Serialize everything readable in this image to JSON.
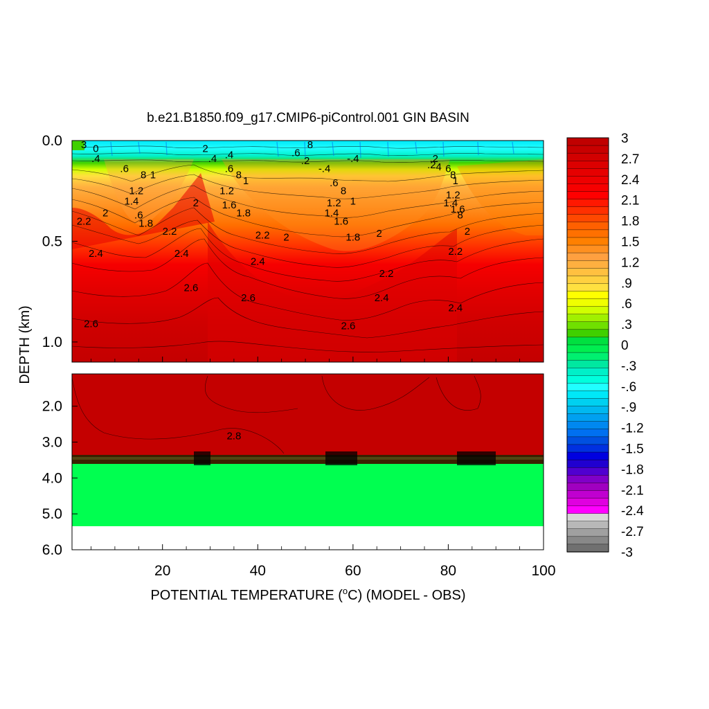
{
  "chart_data": {
    "type": "heatmap",
    "title": "b.e21.B1850.f09_g17.CMIP6-piControl.001 GIN BASIN",
    "xlabel_main": "POTENTIAL TEMPERATURE (",
    "xlabel_unit_sup": "o",
    "xlabel_unit": "C",
    "xlabel_tail": ") (MODEL - OBS)",
    "ylabel": "DEPTH (km)",
    "x_range": [
      1,
      100
    ],
    "x_ticks": [
      20,
      40,
      60,
      80,
      100
    ],
    "x_tick_labels": [
      "20",
      "40",
      "60",
      "80",
      "100"
    ],
    "upper_panel": {
      "y_range": [
        0,
        1.1
      ],
      "y_tick_labels": [
        "0.0",
        "0.5",
        "1.0"
      ],
      "y_ticks": [
        0,
        0.5,
        1.0
      ]
    },
    "lower_panel": {
      "y_range": [
        1.1,
        6.0
      ],
      "y_tick_labels": [
        "2.0",
        "3.0",
        "4.0",
        "5.0",
        "6.0"
      ],
      "y_ticks": [
        2,
        3,
        4,
        5,
        6
      ]
    },
    "colorbar": {
      "levels_top_to_bottom": [
        "3",
        "2.7",
        "2.4",
        "2.1",
        "1.8",
        "1.5",
        "1.2",
        ".9",
        ".6",
        ".3",
        "0",
        "-.3",
        "-.6",
        "-.9",
        "-1.2",
        "-1.5",
        "-1.8",
        "-2.1",
        "-2.4",
        "-2.7",
        "-3"
      ],
      "colors_top_to_bottom": [
        "#c00000",
        "#c80000",
        "#d20000",
        "#dc0000",
        "#e60000",
        "#ee0000",
        "#f60000",
        "#ff0000",
        "#ff1800",
        "#ff3000",
        "#ff4800",
        "#ff6000",
        "#ff7000",
        "#ff8000",
        "#ff9020",
        "#ffa040",
        "#ffb040",
        "#ffc040",
        "#ffd040",
        "#ffe040",
        "#ffff00",
        "#f0ff00",
        "#d0ff00",
        "#a0f000",
        "#70e000",
        "#40d000",
        "#00e040",
        "#00ee50",
        "#00f070",
        "#00e8a0",
        "#00f0c8",
        "#00ffdd",
        "#20ffff",
        "#00e8f8",
        "#00d0f0",
        "#00b8f0",
        "#00a0f0",
        "#0088f0",
        "#0070f0",
        "#0050e0",
        "#0030e0",
        "#0000e0",
        "#2000d0",
        "#5000d0",
        "#8000c8",
        "#a000c0",
        "#c000d0",
        "#e000e0",
        "#ff00ff",
        "#d8d8d8",
        "#b8b8b8",
        "#a0a0a0",
        "#888888",
        "#707070"
      ]
    },
    "contour_labels": [
      {
        "text": "3",
        "x": 3.5,
        "d": 0.02
      },
      {
        "text": "0",
        "x": 6,
        "d": 0.04
      },
      {
        "text": ".4",
        "x": 6,
        "d": 0.09
      },
      {
        "text": ".6",
        "x": 12,
        "d": 0.14
      },
      {
        "text": "8",
        "x": 16,
        "d": 0.17
      },
      {
        "text": "1",
        "x": 18,
        "d": 0.17
      },
      {
        "text": "1.2",
        "x": 14.5,
        "d": 0.25
      },
      {
        "text": "1.4",
        "x": 13.5,
        "d": 0.3
      },
      {
        "text": ".6",
        "x": 15,
        "d": 0.37
      },
      {
        "text": "1.8",
        "x": 16.5,
        "d": 0.41
      },
      {
        "text": "2",
        "x": 8,
        "d": 0.36
      },
      {
        "text": "2.2",
        "x": 3.5,
        "d": 0.4
      },
      {
        "text": "2.4",
        "x": 6,
        "d": 0.56
      },
      {
        "text": "2.2",
        "x": 21.5,
        "d": 0.45
      },
      {
        "text": "2.4",
        "x": 24,
        "d": 0.56
      },
      {
        "text": "2.6",
        "x": 26,
        "d": 0.73
      },
      {
        "text": "2.6",
        "x": 5,
        "d": 0.91
      },
      {
        "text": "2",
        "x": 27,
        "d": 0.31
      },
      {
        "text": "2",
        "x": 29,
        "d": 0.04
      },
      {
        "text": ".4",
        "x": 30.5,
        "d": 0.09
      },
      {
        "text": ".4",
        "x": 34,
        "d": 0.07
      },
      {
        "text": ".6",
        "x": 34,
        "d": 0.14
      },
      {
        "text": "8",
        "x": 36,
        "d": 0.17
      },
      {
        "text": "1",
        "x": 37.5,
        "d": 0.2
      },
      {
        "text": "1.2",
        "x": 33.5,
        "d": 0.25
      },
      {
        "text": "1.6",
        "x": 34,
        "d": 0.32
      },
      {
        "text": "1.8",
        "x": 37,
        "d": 0.36
      },
      {
        "text": "2.2",
        "x": 41,
        "d": 0.47
      },
      {
        "text": "2",
        "x": 46,
        "d": 0.48
      },
      {
        "text": "2.4",
        "x": 40,
        "d": 0.6
      },
      {
        "text": "2.6",
        "x": 38,
        "d": 0.78
      },
      {
        "text": "2.8",
        "x": 35,
        "d": 2.83
      },
      {
        "text": "8",
        "x": 51,
        "d": 0.02
      },
      {
        "text": ".6",
        "x": 48,
        "d": 0.06
      },
      {
        "text": ".2",
        "x": 50,
        "d": 0.1
      },
      {
        "text": "-.4",
        "x": 54,
        "d": 0.14
      },
      {
        "text": "-.4",
        "x": 60,
        "d": 0.09
      },
      {
        "text": ".6",
        "x": 56,
        "d": 0.21
      },
      {
        "text": "8",
        "x": 58,
        "d": 0.25
      },
      {
        "text": "1.2",
        "x": 56,
        "d": 0.31
      },
      {
        "text": "1",
        "x": 60,
        "d": 0.3
      },
      {
        "text": "1.4",
        "x": 55.5,
        "d": 0.36
      },
      {
        "text": "1.6",
        "x": 57.5,
        "d": 0.4
      },
      {
        "text": "1.8",
        "x": 60,
        "d": 0.48
      },
      {
        "text": "2",
        "x": 65.5,
        "d": 0.46
      },
      {
        "text": "2.2",
        "x": 67,
        "d": 0.66
      },
      {
        "text": "2.4",
        "x": 66,
        "d": 0.78
      },
      {
        "text": "2.6",
        "x": 59,
        "d": 0.92
      },
      {
        "text": ".2",
        "x": 77,
        "d": 0.09
      },
      {
        "text": ".2",
        "x": 76.5,
        "d": 0.12
      },
      {
        "text": "4",
        "x": 78,
        "d": 0.13
      },
      {
        "text": "6",
        "x": 80,
        "d": 0.14
      },
      {
        "text": "8",
        "x": 81,
        "d": 0.17
      },
      {
        "text": "1",
        "x": 81.5,
        "d": 0.2
      },
      {
        "text": "1.2",
        "x": 81,
        "d": 0.27
      },
      {
        "text": "1.4",
        "x": 80.5,
        "d": 0.31
      },
      {
        "text": "1.6",
        "x": 82,
        "d": 0.34
      },
      {
        "text": "8",
        "x": 82.5,
        "d": 0.37
      },
      {
        "text": "2",
        "x": 84,
        "d": 0.45
      },
      {
        "text": "2.2",
        "x": 81.5,
        "d": 0.55
      },
      {
        "text": "2.4",
        "x": 81.5,
        "d": 0.83
      }
    ],
    "grid": false,
    "legend": "colorbar-right"
  }
}
